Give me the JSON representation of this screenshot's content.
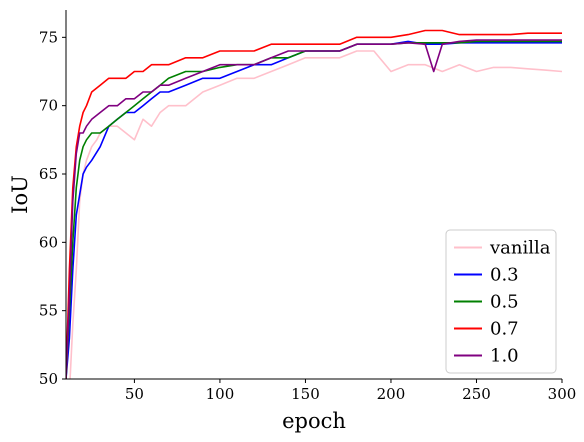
{
  "chart_data": {
    "type": "line",
    "title": "",
    "xlabel": "epoch",
    "ylabel": "IoU",
    "xlim": [
      10,
      300
    ],
    "ylim": [
      50,
      77
    ],
    "xticks": [
      50,
      100,
      150,
      200,
      250,
      300
    ],
    "yticks": [
      50,
      55,
      60,
      65,
      70,
      75
    ],
    "grid": false,
    "legend_position": "lower-right",
    "series": [
      {
        "name": "vanilla",
        "color": "#ffc0cb",
        "x": [
          10,
          12,
          14,
          16,
          18,
          20,
          22,
          25,
          28,
          30,
          35,
          40,
          45,
          50,
          55,
          60,
          65,
          70,
          80,
          90,
          100,
          110,
          120,
          130,
          140,
          150,
          160,
          170,
          180,
          190,
          200,
          210,
          220,
          230,
          240,
          250,
          260,
          270,
          280,
          290,
          300
        ],
        "y": [
          48,
          49,
          54,
          58,
          63,
          65,
          66,
          67,
          67.5,
          68,
          68.5,
          68.5,
          68,
          67.5,
          69,
          68.5,
          69.5,
          70,
          70,
          71,
          71.5,
          72,
          72,
          72.5,
          73,
          73.5,
          73.5,
          73.5,
          74,
          74,
          72.5,
          73,
          73,
          72.5,
          73,
          72.5,
          72.8,
          72.8,
          72.7,
          72.6,
          72.5
        ]
      },
      {
        "name": "0.3",
        "color": "#0000ff",
        "x": [
          10,
          12,
          14,
          16,
          18,
          20,
          22,
          25,
          30,
          35,
          40,
          45,
          50,
          55,
          60,
          65,
          70,
          80,
          90,
          100,
          110,
          120,
          130,
          140,
          150,
          160,
          170,
          180,
          190,
          200,
          210,
          220,
          230,
          240,
          250,
          260,
          270,
          280,
          290,
          300
        ],
        "y": [
          50,
          53,
          58,
          62,
          63.5,
          65,
          65.5,
          66,
          67,
          68.5,
          69,
          69.5,
          69.5,
          70,
          70.5,
          71,
          71,
          71.5,
          72,
          72,
          72.5,
          73,
          73,
          73.5,
          74,
          74,
          74,
          74.5,
          74.5,
          74.5,
          74.7,
          74.5,
          74.5,
          74.6,
          74.6,
          74.6,
          74.6,
          74.6,
          74.6,
          74.6
        ]
      },
      {
        "name": "0.5",
        "color": "#008000",
        "x": [
          10,
          12,
          14,
          16,
          18,
          20,
          22,
          25,
          30,
          35,
          40,
          45,
          50,
          55,
          60,
          65,
          70,
          80,
          90,
          100,
          110,
          120,
          130,
          140,
          150,
          160,
          170,
          180,
          190,
          200,
          210,
          220,
          230,
          240,
          250,
          260,
          270,
          280,
          290,
          300
        ],
        "y": [
          50,
          55,
          60,
          64,
          66,
          67,
          67.5,
          68,
          68,
          68.5,
          69,
          69.5,
          70,
          70.5,
          71,
          71.5,
          72,
          72.5,
          72.5,
          72.8,
          73,
          73,
          73.5,
          73.5,
          74,
          74,
          74,
          74.5,
          74.5,
          74.5,
          74.6,
          74.6,
          74.6,
          74.6,
          74.7,
          74.7,
          74.7,
          74.7,
          74.7,
          74.7
        ]
      },
      {
        "name": "0.7",
        "color": "#ff0000",
        "x": [
          10,
          12,
          14,
          16,
          18,
          20,
          22,
          25,
          30,
          35,
          40,
          45,
          50,
          55,
          60,
          65,
          70,
          80,
          90,
          100,
          110,
          120,
          130,
          140,
          150,
          160,
          170,
          180,
          190,
          200,
          210,
          220,
          230,
          240,
          250,
          260,
          270,
          280,
          290,
          300
        ],
        "y": [
          50,
          58,
          64,
          67,
          68.5,
          69.5,
          70,
          71,
          71.5,
          72,
          72,
          72,
          72.5,
          72.5,
          73,
          73,
          73,
          73.5,
          73.5,
          74,
          74,
          74,
          74.5,
          74.5,
          74.5,
          74.5,
          74.5,
          75,
          75,
          75,
          75.2,
          75.5,
          75.5,
          75.2,
          75.2,
          75.2,
          75.2,
          75.3,
          75.3,
          75.3
        ]
      },
      {
        "name": "1.0",
        "color": "#800080",
        "x": [
          10,
          12,
          14,
          16,
          18,
          20,
          22,
          25,
          30,
          35,
          40,
          45,
          50,
          55,
          60,
          65,
          70,
          80,
          90,
          100,
          110,
          120,
          130,
          140,
          150,
          160,
          170,
          180,
          190,
          200,
          210,
          220,
          225,
          230,
          240,
          250,
          260,
          270,
          280,
          290,
          300
        ],
        "y": [
          50,
          56,
          63,
          66.5,
          68,
          68,
          68.5,
          69,
          69.5,
          70,
          70,
          70.5,
          70.5,
          71,
          71,
          71.5,
          71.5,
          72,
          72.5,
          73,
          73,
          73,
          73.5,
          74,
          74,
          74,
          74,
          74.5,
          74.5,
          74.5,
          74.6,
          74.5,
          72.5,
          74.5,
          74.7,
          74.8,
          74.8,
          74.8,
          74.8,
          74.8,
          74.8
        ]
      }
    ]
  }
}
